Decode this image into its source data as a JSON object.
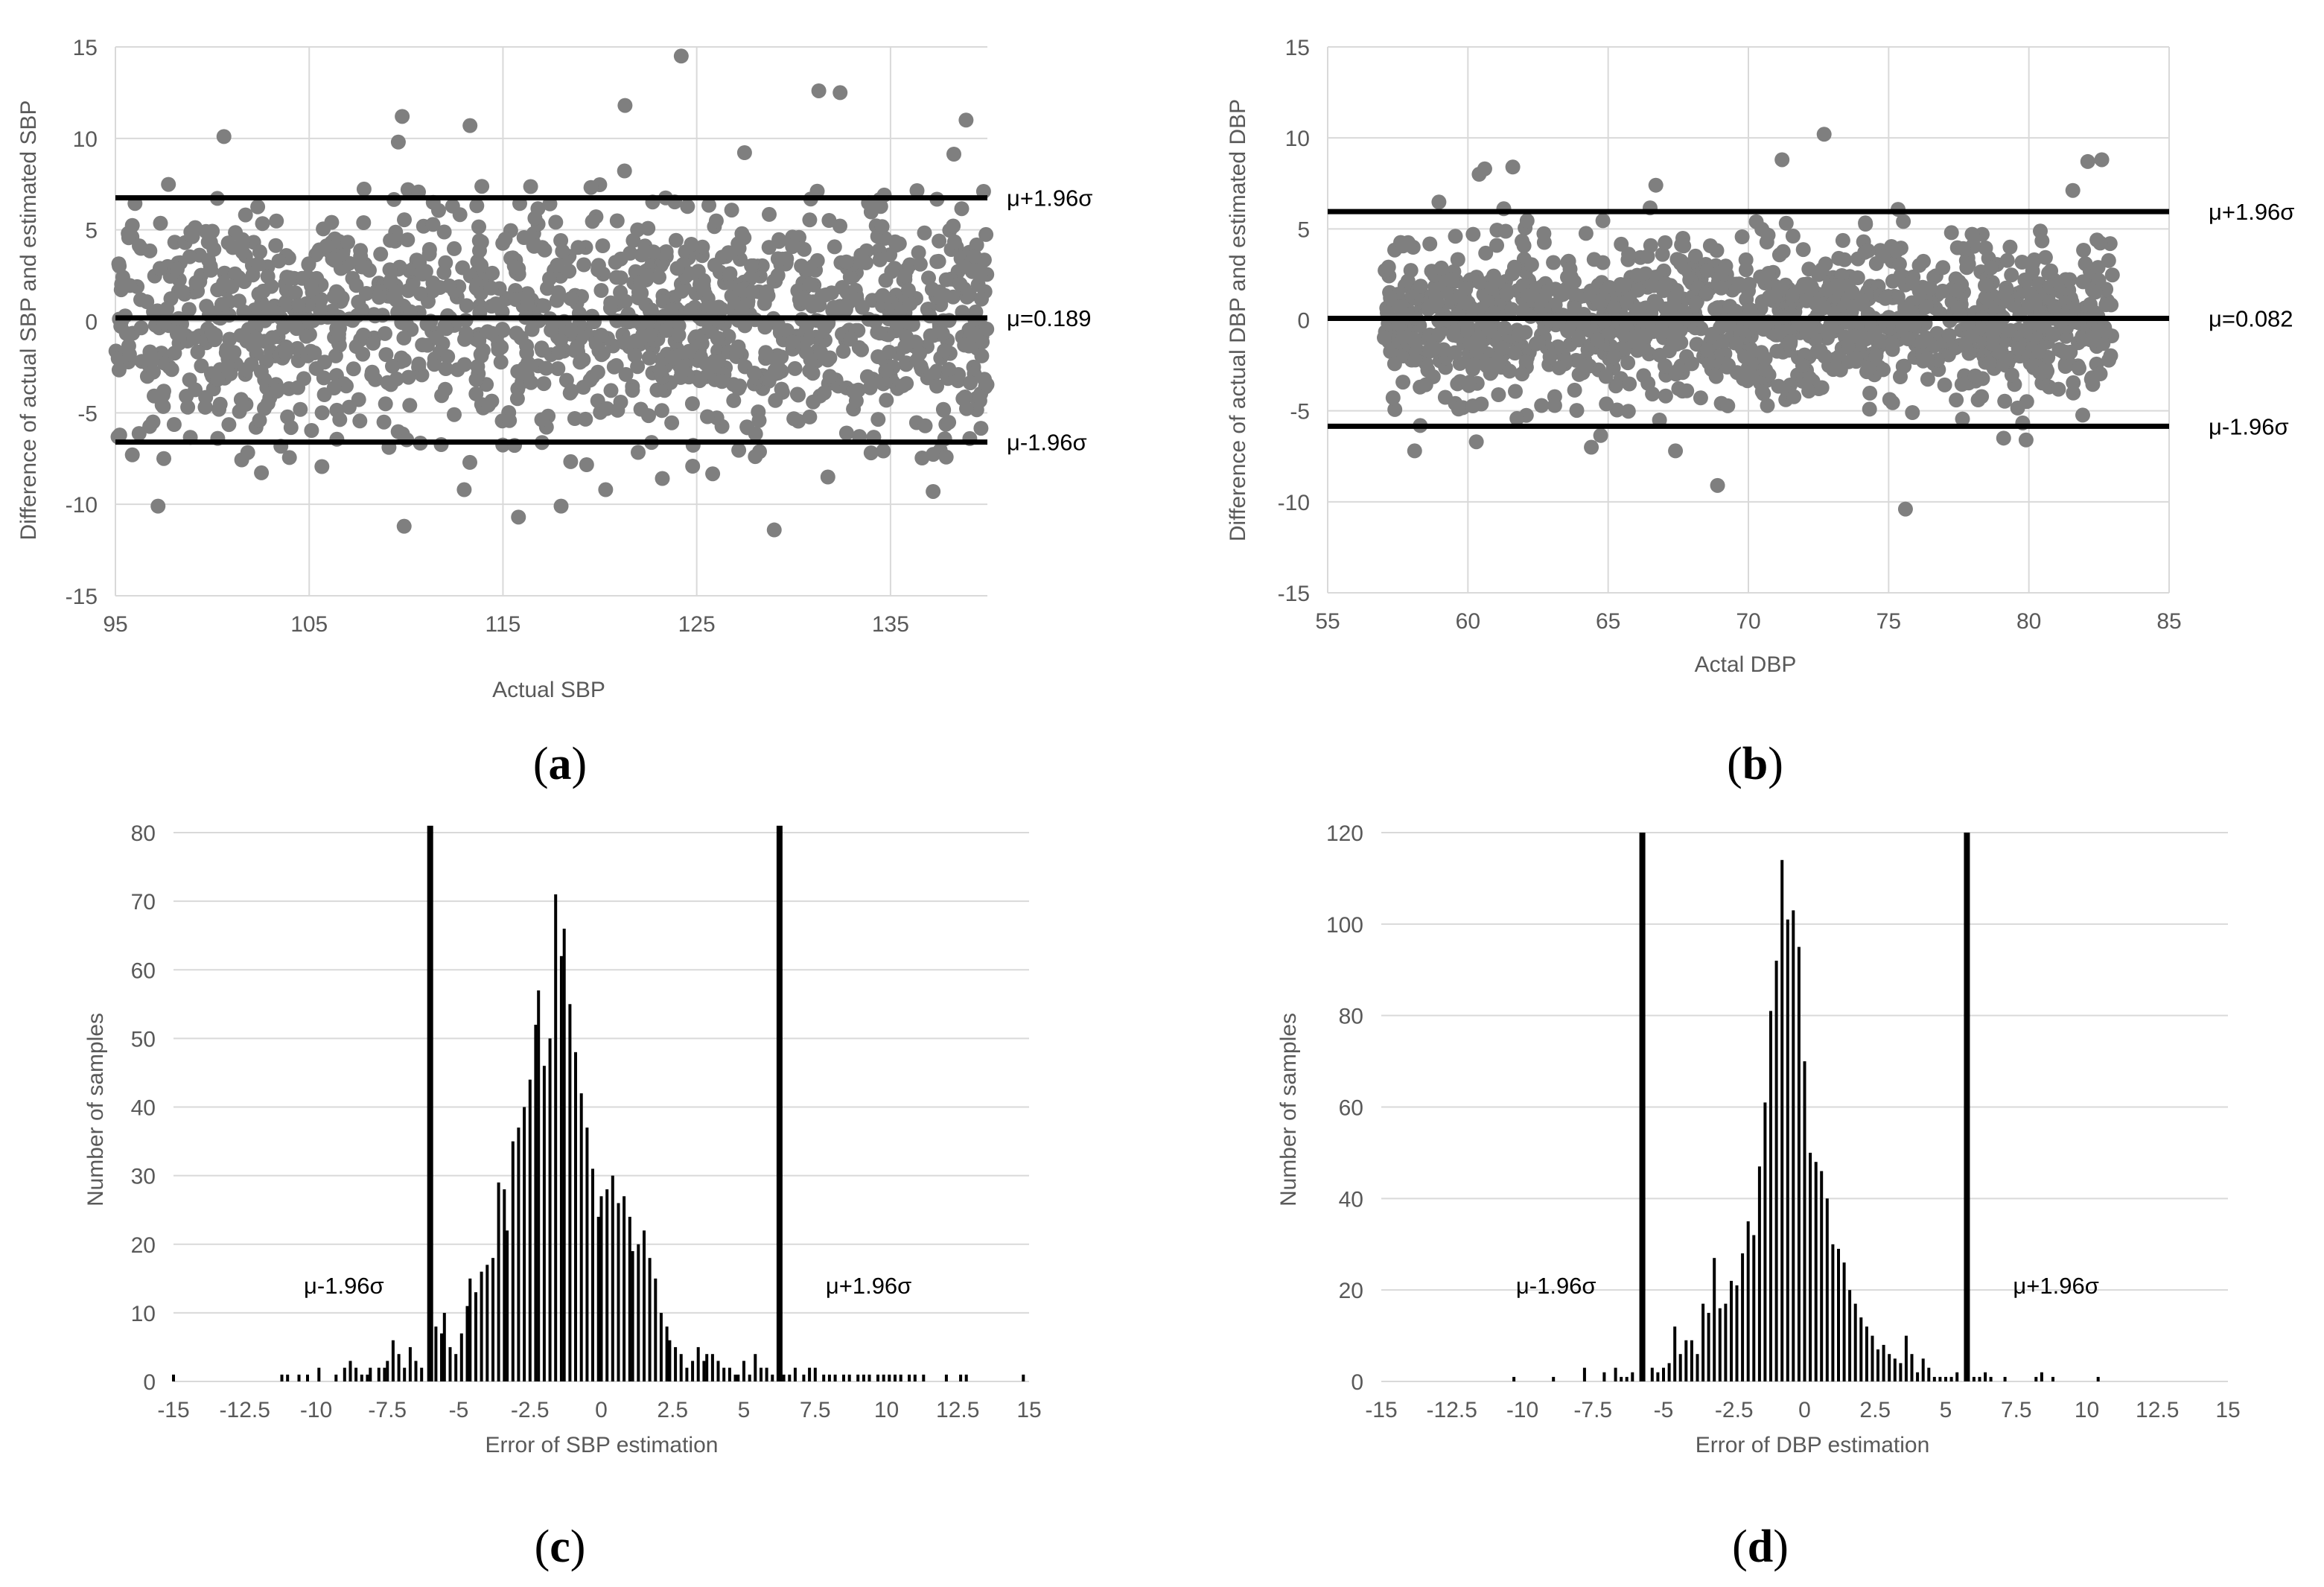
{
  "colors": {
    "grid": "#d9d9d9",
    "point": "#7f7f7f",
    "line": "#000000",
    "bar": "#000000",
    "text": "#595959"
  },
  "chart_data": [
    {
      "id": "a",
      "type": "scatter",
      "panel_label": "a",
      "xlabel": "Actual SBP",
      "ylabel": "Difference of actual SBP and estimated SBP",
      "xlim": [
        95,
        140
      ],
      "ylim": [
        -15,
        15
      ],
      "xticks": [
        95,
        105,
        115,
        125,
        135
      ],
      "yticks": [
        -15,
        -10,
        -5,
        0,
        5,
        10,
        15
      ],
      "grid": true,
      "hlines": [
        {
          "value": 6.75,
          "label": "μ+1.96σ"
        },
        {
          "value": 0.189,
          "label": "μ=0.189"
        },
        {
          "value": -6.6,
          "label": "μ-1.96σ"
        }
      ],
      "n_points": 1300,
      "spread_sd": 3.3,
      "outliers": [
        [
          124.2,
          14.5
        ],
        [
          121.3,
          11.8
        ],
        [
          109.8,
          11.2
        ],
        [
          131.3,
          12.6
        ],
        [
          132.4,
          12.5
        ],
        [
          138.9,
          11.0
        ],
        [
          113.3,
          10.7
        ],
        [
          100.6,
          10.1
        ],
        [
          109.6,
          9.8
        ],
        [
          109.9,
          -11.2
        ],
        [
          129.0,
          -11.4
        ],
        [
          115.8,
          -10.7
        ],
        [
          118.0,
          -10.1
        ],
        [
          97.2,
          -10.1
        ],
        [
          137.2,
          -9.3
        ],
        [
          120.3,
          -9.2
        ],
        [
          113.0,
          -9.2
        ]
      ]
    },
    {
      "id": "b",
      "type": "scatter",
      "panel_label": "b",
      "xlabel": "Actal DBP",
      "ylabel": "Difference of actual DBP and estimated DBP",
      "xlim": [
        55,
        85
      ],
      "ylim": [
        -15,
        15
      ],
      "xticks": [
        55,
        60,
        65,
        70,
        75,
        80,
        85
      ],
      "yticks": [
        -15,
        -10,
        -5,
        0,
        5,
        10,
        15
      ],
      "grid": true,
      "hlines": [
        {
          "value": 5.95,
          "label": "μ+1.96σ"
        },
        {
          "value": 0.082,
          "label": "μ=0.082"
        },
        {
          "value": -5.85,
          "label": "μ-1.96σ"
        }
      ],
      "n_points": 1300,
      "spread_sd": 2.2,
      "x_range": [
        57,
        83
      ],
      "outliers": [
        [
          72.7,
          10.2
        ],
        [
          71.2,
          8.8
        ],
        [
          82.1,
          8.7
        ],
        [
          82.6,
          8.8
        ],
        [
          61.6,
          8.4
        ],
        [
          60.4,
          8.0
        ],
        [
          60.6,
          8.3
        ],
        [
          66.7,
          7.4
        ],
        [
          75.6,
          -10.4
        ],
        [
          68.9,
          -9.1
        ],
        [
          58.1,
          -7.2
        ],
        [
          67.4,
          -7.2
        ],
        [
          64.4,
          -7.0
        ],
        [
          60.3,
          -6.7
        ],
        [
          79.9,
          -6.6
        ],
        [
          79.1,
          -6.5
        ]
      ]
    },
    {
      "id": "c",
      "type": "bar",
      "panel_label": "c",
      "xlabel": "Error of SBP estimation",
      "ylabel": "Number of samples",
      "xlim": [
        -15,
        15
      ],
      "ylim": [
        0,
        80
      ],
      "xticks": [
        -15,
        -12.5,
        -10,
        -7.5,
        -5,
        -2.5,
        0,
        2.5,
        5,
        7.5,
        10,
        12.5,
        15
      ],
      "yticks": [
        0,
        10,
        20,
        30,
        40,
        50,
        60,
        70,
        80
      ],
      "grid": true,
      "vlines": [
        {
          "value": -6.0,
          "label": "μ-1.96σ",
          "height": 81
        },
        {
          "value": 6.25,
          "label": "μ+1.96σ",
          "height": 81
        }
      ],
      "x": [
        -15,
        -11.2,
        -11,
        -10.6,
        -10.3,
        -9.9,
        -9.3,
        -9,
        -8.8,
        -8.6,
        -8.4,
        -8.2,
        -8.1,
        -7.8,
        -7.6,
        -7.5,
        -7.3,
        -7.1,
        -6.9,
        -6.7,
        -6.5,
        -6.3,
        -6,
        -5.8,
        -5.6,
        -5.5,
        -5.3,
        -5.1,
        -4.9,
        -4.7,
        -4.6,
        -4.4,
        -4.2,
        -4,
        -3.8,
        -3.6,
        -3.4,
        -3.3,
        -3.1,
        -2.9,
        -2.7,
        -2.5,
        -2.3,
        -2.2,
        -2,
        -1.8,
        -1.6,
        -1.4,
        -1.3,
        -1.1,
        -0.9,
        -0.7,
        -0.5,
        -0.3,
        -0.1,
        0,
        0.2,
        0.4,
        0.6,
        0.8,
        1,
        1.1,
        1.3,
        1.5,
        1.7,
        1.9,
        2.1,
        2.3,
        2.4,
        2.6,
        2.8,
        3,
        3.2,
        3.4,
        3.6,
        3.7,
        3.9,
        4.1,
        4.3,
        4.5,
        4.7,
        4.8,
        5,
        5.2,
        5.4,
        5.6,
        5.8,
        6,
        6.4,
        6.6,
        6.8,
        7.1,
        7.3,
        7.5,
        7.8,
        8,
        8.2,
        8.5,
        8.7,
        9,
        9.2,
        9.4,
        9.7,
        9.9,
        10.1,
        10.3,
        10.5,
        10.8,
        11,
        11.3,
        12.1,
        12.6,
        12.8,
        14.8
      ],
      "values": [
        1,
        1,
        1,
        1,
        1,
        2,
        1,
        2,
        3,
        2,
        1,
        1,
        2,
        2,
        2,
        3,
        6,
        4,
        2,
        5,
        3,
        2,
        1,
        8,
        7,
        10,
        5,
        4,
        7,
        11,
        15,
        13,
        16,
        17,
        18,
        29,
        28,
        22,
        35,
        37,
        40,
        44,
        52,
        57,
        46,
        50,
        71,
        62,
        66,
        55,
        48,
        42,
        37,
        31,
        24,
        27,
        28,
        30,
        26,
        27,
        24,
        19,
        20,
        22,
        18,
        15,
        10,
        8,
        6,
        5,
        4,
        2,
        3,
        5,
        3,
        4,
        4,
        3,
        2,
        2,
        1,
        1,
        3,
        1,
        4,
        2,
        2,
        1,
        1,
        1,
        2,
        1,
        2,
        2,
        1,
        1,
        1,
        1,
        1,
        1,
        1,
        1,
        1,
        1,
        1,
        1,
        1,
        1,
        1,
        1,
        1,
        1,
        1,
        1
      ]
    },
    {
      "id": "d",
      "type": "bar",
      "panel_label": "d",
      "xlabel": "Error of DBP estimation",
      "ylabel": "Number of samples",
      "xlim": [
        -15,
        15
      ],
      "ylim": [
        0,
        120
      ],
      "xticks": [
        -15,
        -12.5,
        -10,
        -7.5,
        -5,
        -2.5,
        0,
        2.5,
        5,
        7.5,
        10,
        12.5,
        15
      ],
      "yticks": [
        0,
        20,
        40,
        60,
        80,
        100,
        120
      ],
      "grid": true,
      "vlines": [
        {
          "value": -5.75,
          "label": "μ-1.96σ",
          "height": 120
        },
        {
          "value": 5.75,
          "label": "μ+1.96σ",
          "height": 120
        }
      ],
      "x": [
        -10.3,
        -8.9,
        -7.8,
        -7.1,
        -6.7,
        -6.5,
        -6.3,
        -6.1,
        -5.4,
        -5.2,
        -5,
        -4.8,
        -4.6,
        -4.4,
        -4.2,
        -4,
        -3.8,
        -3.6,
        -3.4,
        -3.2,
        -3,
        -2.8,
        -2.6,
        -2.4,
        -2.2,
        -2,
        -1.8,
        -1.6,
        -1.4,
        -1.2,
        -1,
        -0.8,
        -0.6,
        -0.4,
        -0.2,
        0,
        0.2,
        0.4,
        0.6,
        0.8,
        1,
        1.2,
        1.4,
        1.6,
        1.8,
        2,
        2.2,
        2.4,
        2.6,
        2.8,
        3,
        3.2,
        3.4,
        3.6,
        3.8,
        4,
        4.2,
        4.4,
        4.6,
        4.8,
        5,
        5.2,
        5.4,
        6,
        6.2,
        6.4,
        6.6,
        7.1,
        8.2,
        8.4,
        8.8,
        10.4
      ],
      "values": [
        1,
        1,
        3,
        2,
        3,
        1,
        1,
        2,
        3,
        2,
        3,
        4,
        12,
        6,
        9,
        9,
        6,
        17,
        15,
        27,
        16,
        17,
        22,
        21,
        28,
        35,
        32,
        47,
        61,
        81,
        92,
        114,
        101,
        103,
        95,
        70,
        50,
        48,
        46,
        40,
        30,
        29,
        26,
        20,
        17,
        14,
        12,
        10,
        7,
        8,
        6,
        5,
        4,
        10,
        6,
        2,
        5,
        3,
        1,
        1,
        1,
        1,
        2,
        1,
        1,
        2,
        1,
        1,
        1,
        2,
        1,
        1
      ]
    }
  ]
}
